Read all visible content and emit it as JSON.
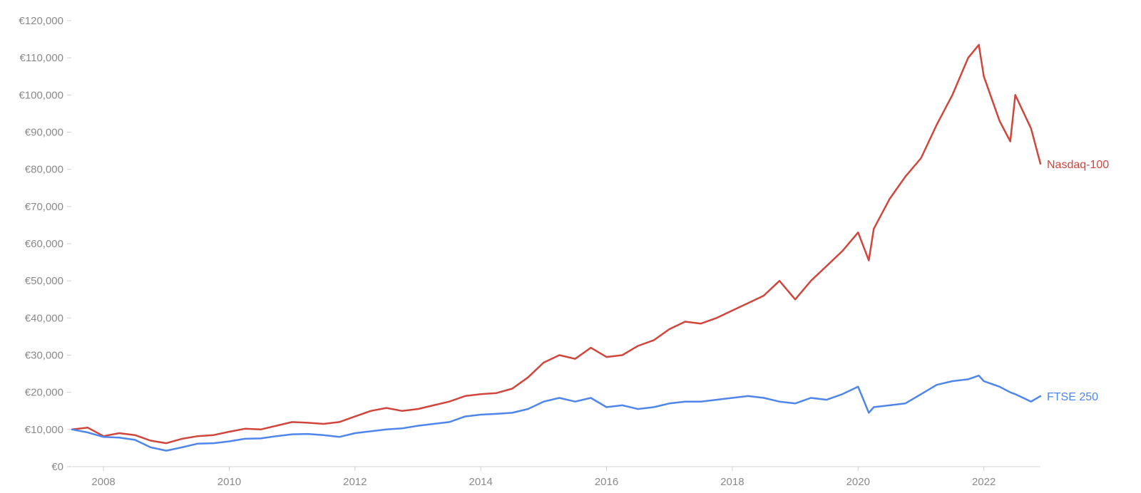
{
  "chart_data": {
    "type": "line",
    "title": "",
    "xlabel": "",
    "ylabel": "",
    "xlim": [
      2007.5,
      2022.9
    ],
    "ylim": [
      0,
      120000
    ],
    "grid": false,
    "legend": "inline-right",
    "y_ticks": [
      0,
      10000,
      20000,
      30000,
      40000,
      50000,
      60000,
      70000,
      80000,
      90000,
      100000,
      110000,
      120000
    ],
    "y_tick_labels": [
      "€0",
      "€10,000",
      "€20,000",
      "€30,000",
      "€40,000",
      "€50,000",
      "€60,000",
      "€70,000",
      "€80,000",
      "€90,000",
      "€100,000",
      "€110,000",
      "€120,000"
    ],
    "x_ticks": [
      2008,
      2010,
      2012,
      2014,
      2016,
      2018,
      2020,
      2022
    ],
    "x_tick_labels": [
      "2008",
      "2010",
      "2012",
      "2014",
      "2016",
      "2018",
      "2020",
      "2022"
    ],
    "series": [
      {
        "name": "Nasdaq-100",
        "color": "#d0463c",
        "x": [
          2007.5,
          2007.75,
          2008.0,
          2008.25,
          2008.5,
          2008.75,
          2009.0,
          2009.25,
          2009.5,
          2009.75,
          2010.0,
          2010.25,
          2010.5,
          2010.75,
          2011.0,
          2011.25,
          2011.5,
          2011.75,
          2012.0,
          2012.25,
          2012.5,
          2012.75,
          2013.0,
          2013.25,
          2013.5,
          2013.75,
          2014.0,
          2014.25,
          2014.5,
          2014.75,
          2015.0,
          2015.25,
          2015.5,
          2015.75,
          2016.0,
          2016.25,
          2016.5,
          2016.75,
          2017.0,
          2017.25,
          2017.5,
          2017.75,
          2018.0,
          2018.25,
          2018.5,
          2018.75,
          2019.0,
          2019.25,
          2019.5,
          2019.75,
          2020.0,
          2020.17,
          2020.25,
          2020.5,
          2020.75,
          2021.0,
          2021.25,
          2021.5,
          2021.75,
          2021.92,
          2022.0,
          2022.25,
          2022.42,
          2022.5,
          2022.75,
          2022.9
        ],
        "values": [
          10000,
          10500,
          8200,
          9000,
          8500,
          7000,
          6300,
          7500,
          8200,
          8500,
          9400,
          10200,
          10000,
          11000,
          12000,
          11800,
          11500,
          12000,
          13500,
          15000,
          15800,
          15000,
          15500,
          16500,
          17500,
          19000,
          19500,
          19800,
          21000,
          24000,
          28000,
          30000,
          29000,
          32000,
          29500,
          30000,
          32500,
          34000,
          37000,
          39000,
          38500,
          40000,
          42000,
          44000,
          46000,
          50000,
          45000,
          50000,
          54000,
          58000,
          63000,
          55500,
          64000,
          72000,
          78000,
          83000,
          92000,
          100000,
          110000,
          113500,
          105000,
          93000,
          87500,
          100000,
          91000,
          81500
        ]
      },
      {
        "name": "FTSE 250",
        "color": "#4f86ec",
        "x": [
          2007.5,
          2007.75,
          2008.0,
          2008.25,
          2008.5,
          2008.75,
          2009.0,
          2009.25,
          2009.5,
          2009.75,
          2010.0,
          2010.25,
          2010.5,
          2010.75,
          2011.0,
          2011.25,
          2011.5,
          2011.75,
          2012.0,
          2012.25,
          2012.5,
          2012.75,
          2013.0,
          2013.25,
          2013.5,
          2013.75,
          2014.0,
          2014.25,
          2014.5,
          2014.75,
          2015.0,
          2015.25,
          2015.5,
          2015.75,
          2016.0,
          2016.25,
          2016.5,
          2016.75,
          2017.0,
          2017.25,
          2017.5,
          2017.75,
          2018.0,
          2018.25,
          2018.5,
          2018.75,
          2019.0,
          2019.25,
          2019.5,
          2019.75,
          2020.0,
          2020.17,
          2020.25,
          2020.5,
          2020.75,
          2021.0,
          2021.25,
          2021.5,
          2021.75,
          2021.92,
          2022.0,
          2022.25,
          2022.42,
          2022.5,
          2022.75,
          2022.9
        ],
        "values": [
          10000,
          9200,
          8000,
          7800,
          7200,
          5200,
          4300,
          5200,
          6200,
          6300,
          6800,
          7500,
          7600,
          8200,
          8700,
          8800,
          8500,
          8000,
          9000,
          9500,
          10000,
          10300,
          11000,
          11500,
          12000,
          13500,
          14000,
          14200,
          14500,
          15500,
          17500,
          18500,
          17500,
          18500,
          16000,
          16500,
          15500,
          16000,
          17000,
          17500,
          17500,
          18000,
          18500,
          19000,
          18500,
          17500,
          17000,
          18500,
          18000,
          19500,
          21500,
          14500,
          16000,
          16500,
          17000,
          19500,
          22000,
          23000,
          23500,
          24500,
          23000,
          21500,
          20000,
          19500,
          17500,
          19000
        ]
      }
    ]
  }
}
